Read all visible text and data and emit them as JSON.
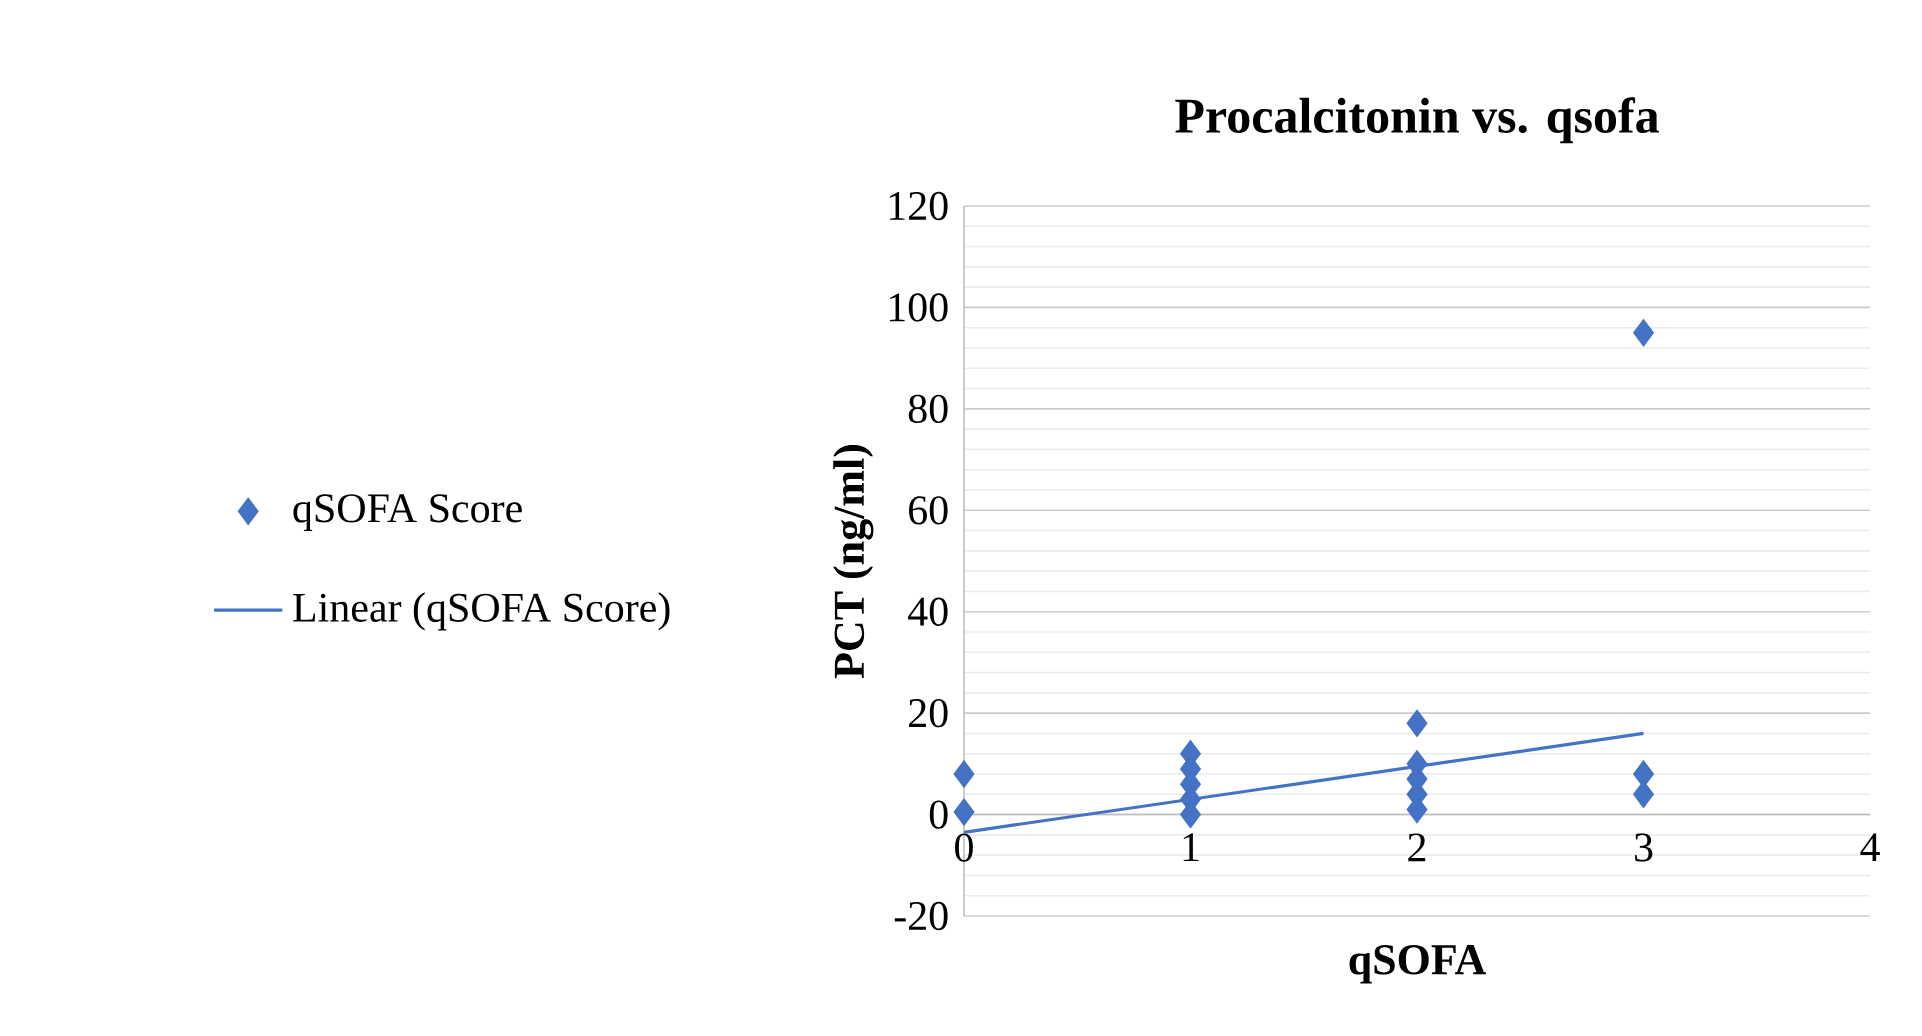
{
  "chart_data": {
    "type": "scatter",
    "title": "Procalcitonin vs. qsofa",
    "xlabel": "qSOFA",
    "ylabel": "PCT (ng/ml)",
    "xlim": [
      0,
      4
    ],
    "xticks": [
      0,
      1,
      2,
      3,
      4
    ],
    "ylim": [
      -20,
      120
    ],
    "yticks": [
      -20,
      0,
      20,
      40,
      60,
      80,
      100,
      120
    ],
    "grid": "y",
    "legend": "left",
    "series": [
      {
        "name": "qSOFA Score",
        "color": "#4472c4",
        "marker": "diamond",
        "x": [
          0,
          0,
          1,
          1,
          1,
          1,
          1,
          2,
          2,
          2,
          2,
          2,
          3,
          3,
          3
        ],
        "values": [
          8,
          0.5,
          12,
          9,
          6,
          3,
          0,
          18,
          10,
          7,
          4,
          1,
          95,
          8,
          4
        ]
      },
      {
        "name": "Linear (qSOFA Score)",
        "type": "line",
        "marker": "none",
        "color": "#4472c4",
        "x": [
          0,
          3
        ],
        "values": [
          -3.5,
          16
        ]
      }
    ]
  }
}
